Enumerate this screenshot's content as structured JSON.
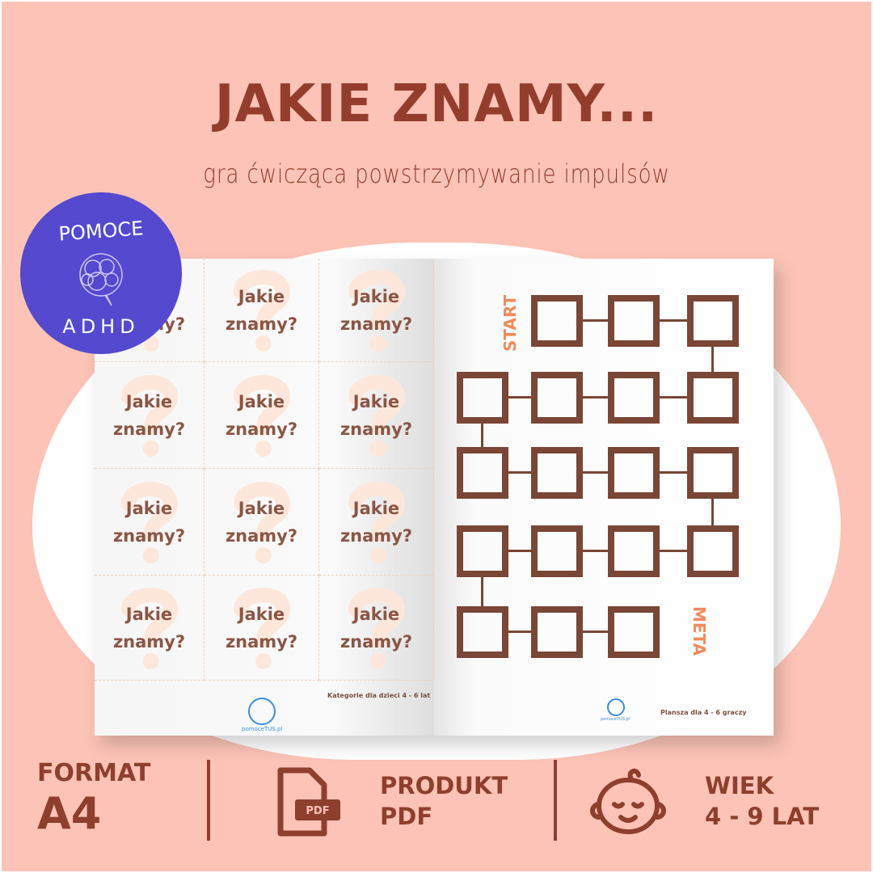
{
  "title": "JAKIE ZNAMY...",
  "subtitle": "gra ćwicząca powstrzymywanie impulsów",
  "badge": {
    "top": "POMOCE",
    "bottom": "ADHD",
    "icon": "brain-scribble-icon"
  },
  "cards": {
    "label_line1": "Jakie",
    "label_line2": "znamy?",
    "count": 12
  },
  "left_page": {
    "footer": "Kategorie dla dzieci 4 - 6 lat",
    "logo_text": "pomoceTUS.pl"
  },
  "right_page": {
    "start": "START",
    "meta": "META",
    "footer": "Plansza dla 4 - 6 graczy",
    "logo_text": "pomoceTUS.pl"
  },
  "info": {
    "format_label": "FORMAT",
    "format_value": "A4",
    "product_label": "PRODUKT",
    "product_value": "PDF",
    "pdf_icon_text": "PDF",
    "age_label": "WIEK",
    "age_value": "4 - 9 LAT"
  },
  "colors": {
    "background": "#fcc3b6",
    "title": "#953d2d",
    "badge": "#5549d0",
    "board": "#7a4636",
    "accent": "#f28a5a"
  }
}
